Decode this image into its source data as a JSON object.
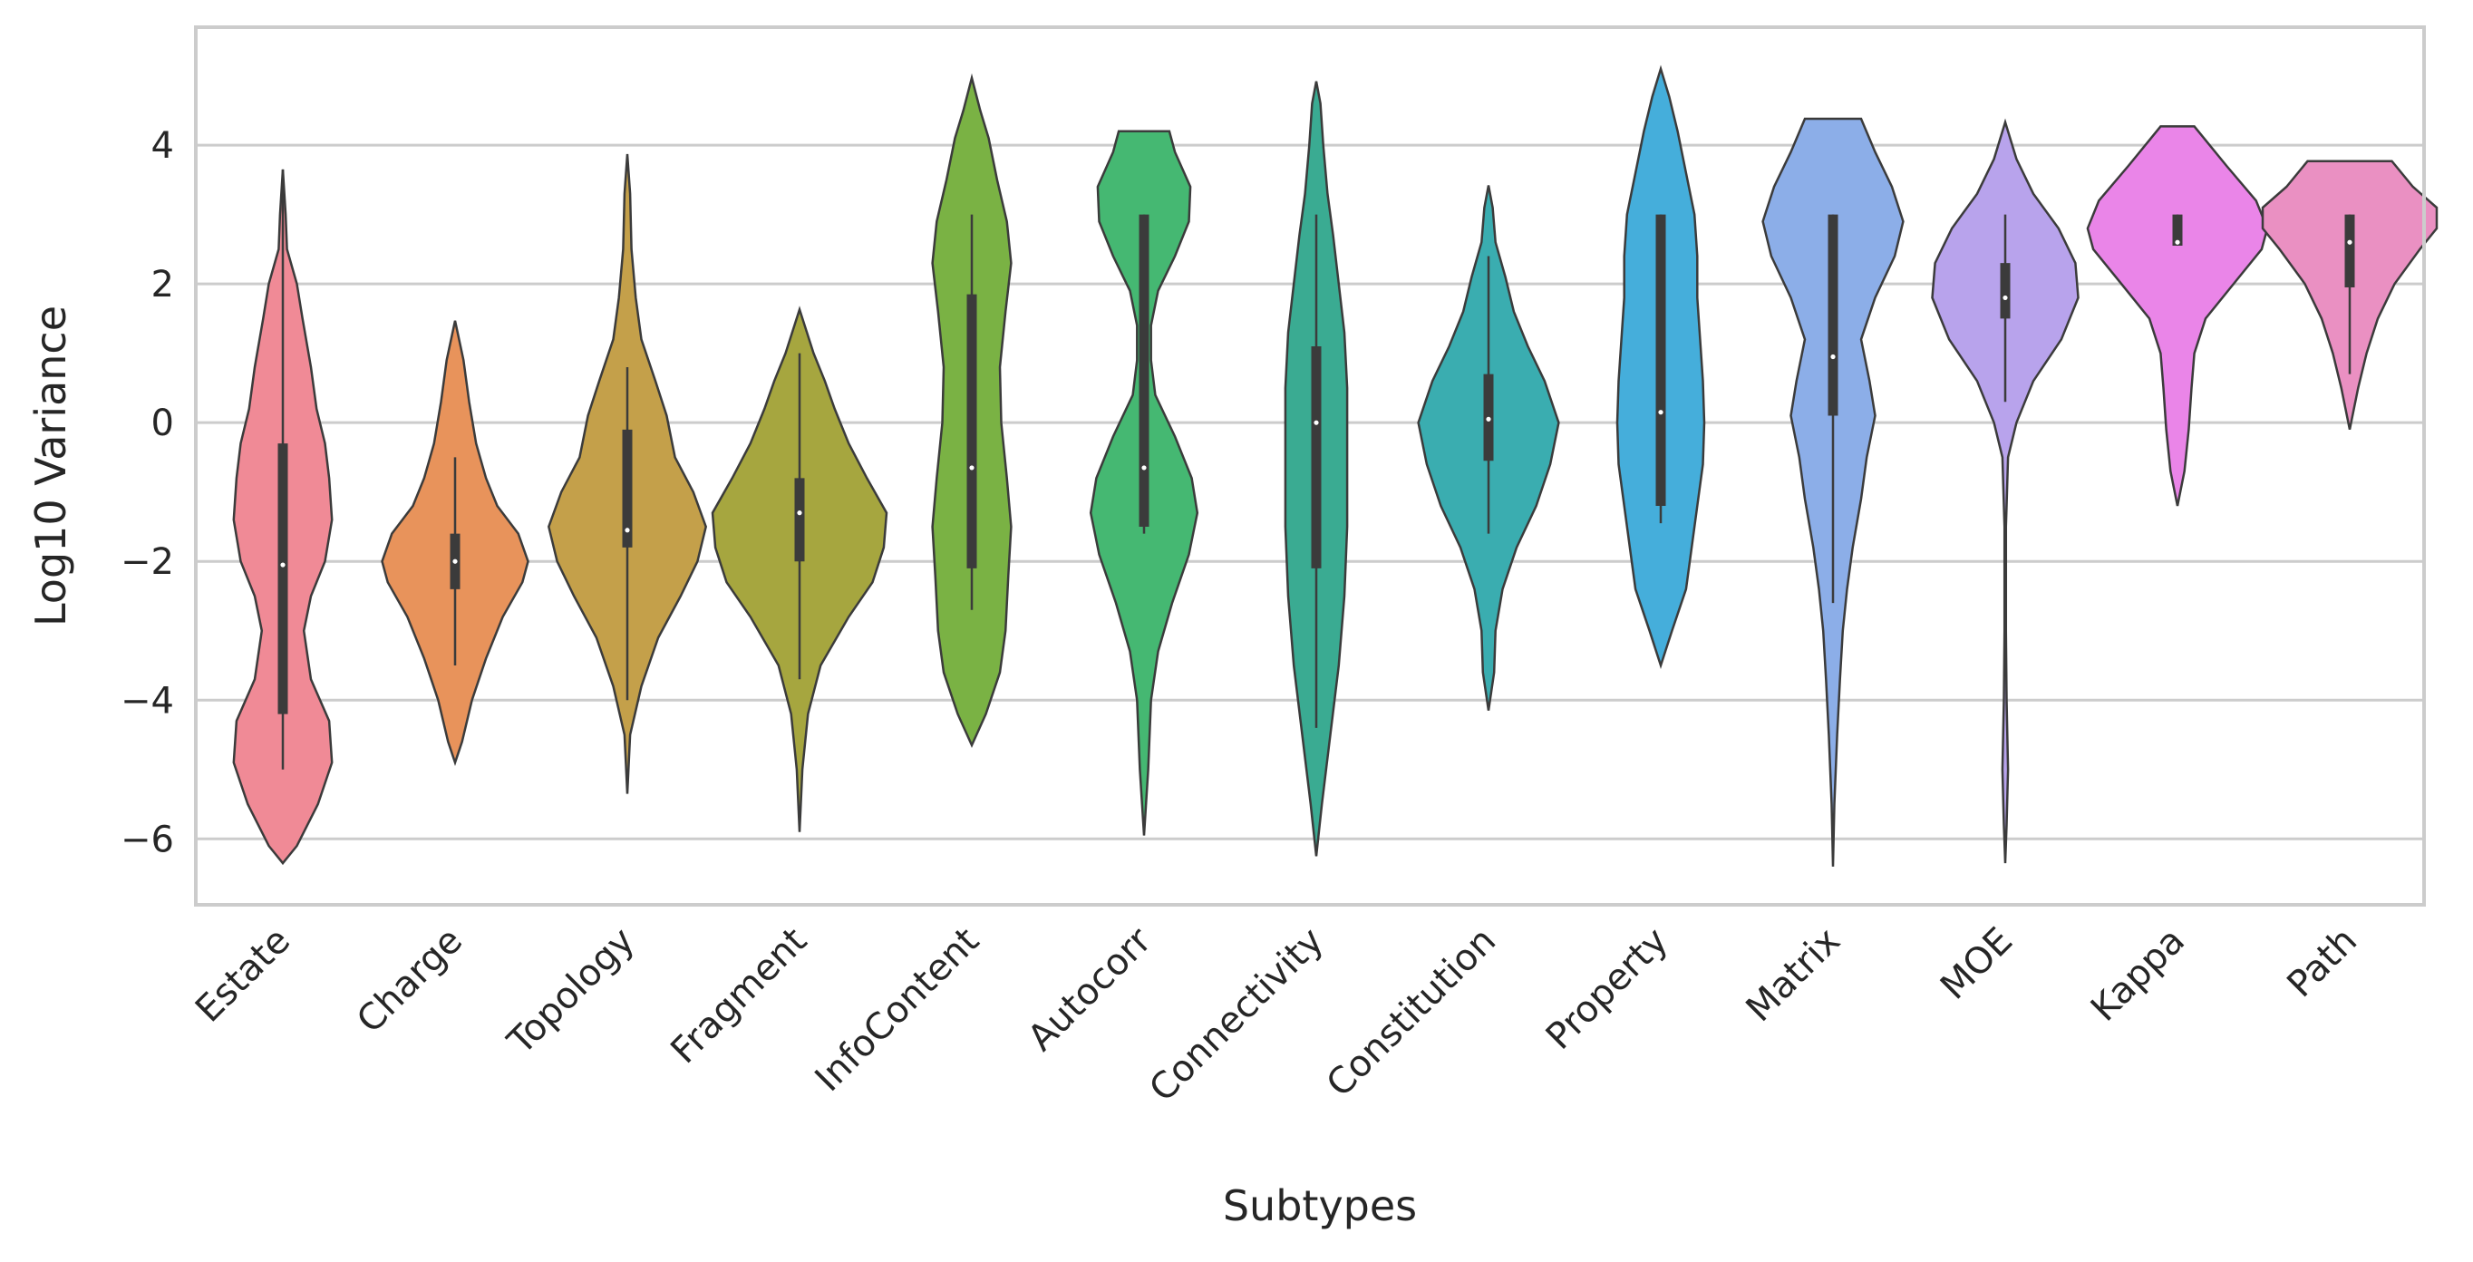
{
  "chart_data": {
    "type": "violin",
    "xlabel": "Subtypes",
    "ylabel": "Log10 Variance",
    "ylim": [
      -6.95,
      5.7
    ],
    "yticks": [
      4,
      2,
      0,
      -2,
      -4,
      -6
    ],
    "ytick_labels": [
      "4",
      "2",
      "0",
      "−2",
      "−4",
      "−6"
    ],
    "grid": "horizontal",
    "categories": [
      "Estate",
      "Charge",
      "Topology",
      "Fragment",
      "InfoContent",
      "Autocorr",
      "Connectivity",
      "Constitution",
      "Property",
      "Matrix",
      "MOE",
      "Kappa",
      "Path"
    ],
    "colors": [
      "#f08a96",
      "#e8935b",
      "#c4a04a",
      "#a6a63f",
      "#7ab244",
      "#45b872",
      "#3aab92",
      "#3aadb0",
      "#45aedb",
      "#8caee8",
      "#b8a3ec",
      "#ea85e8",
      "#ea90c2"
    ],
    "series": [
      {
        "name": "Estate",
        "min": -5.0,
        "q1": -4.2,
        "median": -2.05,
        "q3": -0.3,
        "max": 3.65,
        "profile": [
          [
            -6.35,
            0
          ],
          [
            -6.1,
            0.1
          ],
          [
            -5.5,
            0.25
          ],
          [
            -4.9,
            0.35
          ],
          [
            -4.3,
            0.33
          ],
          [
            -3.7,
            0.2
          ],
          [
            -3.0,
            0.15
          ],
          [
            -2.5,
            0.2
          ],
          [
            -2.0,
            0.3
          ],
          [
            -1.4,
            0.35
          ],
          [
            -0.8,
            0.33
          ],
          [
            -0.3,
            0.3
          ],
          [
            0.2,
            0.24
          ],
          [
            0.8,
            0.2
          ],
          [
            1.5,
            0.14
          ],
          [
            2.0,
            0.1
          ],
          [
            2.5,
            0.03
          ],
          [
            3.0,
            0.02
          ],
          [
            3.65,
            0
          ]
        ]
      },
      {
        "name": "Charge",
        "min": -3.5,
        "q1": -2.4,
        "median": -2.0,
        "q3": -1.6,
        "max": -0.5,
        "profile": [
          [
            -4.9,
            0
          ],
          [
            -4.6,
            0.05
          ],
          [
            -4.0,
            0.12
          ],
          [
            -3.4,
            0.22
          ],
          [
            -2.8,
            0.34
          ],
          [
            -2.3,
            0.48
          ],
          [
            -2.0,
            0.52
          ],
          [
            -1.6,
            0.45
          ],
          [
            -1.2,
            0.3
          ],
          [
            -0.8,
            0.22
          ],
          [
            -0.3,
            0.15
          ],
          [
            0.3,
            0.1
          ],
          [
            0.9,
            0.06
          ],
          [
            1.47,
            0
          ]
        ]
      },
      {
        "name": "Topology",
        "min": -4.0,
        "q1": -1.8,
        "median": -1.55,
        "q3": -0.1,
        "max": 0.8,
        "profile": [
          [
            -5.35,
            0
          ],
          [
            -4.5,
            0.02
          ],
          [
            -3.8,
            0.1
          ],
          [
            -3.1,
            0.22
          ],
          [
            -2.5,
            0.38
          ],
          [
            -2.0,
            0.5
          ],
          [
            -1.5,
            0.56
          ],
          [
            -1.0,
            0.47
          ],
          [
            -0.5,
            0.34
          ],
          [
            0.1,
            0.28
          ],
          [
            0.6,
            0.2
          ],
          [
            1.2,
            0.1
          ],
          [
            1.8,
            0.06
          ],
          [
            2.5,
            0.03
          ],
          [
            3.3,
            0.02
          ],
          [
            3.87,
            0
          ]
        ]
      },
      {
        "name": "Fragment",
        "min": -3.7,
        "q1": -2.0,
        "median": -1.3,
        "q3": -0.8,
        "max": 1.0,
        "profile": [
          [
            -5.9,
            0
          ],
          [
            -5.0,
            0.02
          ],
          [
            -4.2,
            0.06
          ],
          [
            -3.5,
            0.15
          ],
          [
            -2.8,
            0.35
          ],
          [
            -2.3,
            0.52
          ],
          [
            -1.8,
            0.6
          ],
          [
            -1.3,
            0.62
          ],
          [
            -0.8,
            0.48
          ],
          [
            -0.3,
            0.35
          ],
          [
            0.2,
            0.25
          ],
          [
            0.6,
            0.18
          ],
          [
            1.0,
            0.1
          ],
          [
            1.63,
            0
          ]
        ]
      },
      {
        "name": "InfoContent",
        "min": -2.7,
        "q1": -2.1,
        "median": -0.65,
        "q3": 1.85,
        "max": 3.0,
        "profile": [
          [
            -4.65,
            0
          ],
          [
            -4.2,
            0.1
          ],
          [
            -3.6,
            0.2
          ],
          [
            -3.0,
            0.24
          ],
          [
            -2.2,
            0.26
          ],
          [
            -1.5,
            0.28
          ],
          [
            -0.8,
            0.25
          ],
          [
            0,
            0.21
          ],
          [
            0.8,
            0.2
          ],
          [
            1.6,
            0.24
          ],
          [
            2.3,
            0.28
          ],
          [
            2.9,
            0.25
          ],
          [
            3.5,
            0.18
          ],
          [
            4.1,
            0.12
          ],
          [
            4.5,
            0.06
          ],
          [
            4.97,
            0
          ]
        ]
      },
      {
        "name": "Autocorr",
        "min": -1.6,
        "q1": -1.5,
        "median": -0.65,
        "q3": 3.0,
        "max": 3.0,
        "profile": [
          [
            -5.95,
            0
          ],
          [
            -5.0,
            0.03
          ],
          [
            -4.0,
            0.05
          ],
          [
            -3.3,
            0.1
          ],
          [
            -2.6,
            0.2
          ],
          [
            -1.9,
            0.32
          ],
          [
            -1.3,
            0.38
          ],
          [
            -0.8,
            0.34
          ],
          [
            -0.2,
            0.22
          ],
          [
            0.4,
            0.08
          ],
          [
            0.9,
            0.05
          ],
          [
            1.4,
            0.05
          ],
          [
            1.9,
            0.1
          ],
          [
            2.4,
            0.22
          ],
          [
            2.9,
            0.32
          ],
          [
            3.4,
            0.33
          ],
          [
            3.9,
            0.22
          ],
          [
            4.2,
            0.18
          ]
        ]
      },
      {
        "name": "Connectivity",
        "min": -4.4,
        "q1": -2.1,
        "median": 0.0,
        "q3": 1.1,
        "max": 3.0,
        "profile": [
          [
            -6.25,
            0
          ],
          [
            -5.5,
            0.04
          ],
          [
            -4.5,
            0.1
          ],
          [
            -3.5,
            0.16
          ],
          [
            -2.5,
            0.2
          ],
          [
            -1.5,
            0.22
          ],
          [
            -0.5,
            0.22
          ],
          [
            0.5,
            0.22
          ],
          [
            1.3,
            0.2
          ],
          [
            2.0,
            0.16
          ],
          [
            2.7,
            0.12
          ],
          [
            3.3,
            0.08
          ],
          [
            4.0,
            0.05
          ],
          [
            4.6,
            0.03
          ],
          [
            4.92,
            0
          ]
        ]
      },
      {
        "name": "Constitution",
        "min": -1.6,
        "q1": -0.55,
        "median": 0.05,
        "q3": 0.7,
        "max": 2.4,
        "profile": [
          [
            -4.15,
            0
          ],
          [
            -3.6,
            0.04
          ],
          [
            -3.0,
            0.05
          ],
          [
            -2.4,
            0.1
          ],
          [
            -1.8,
            0.2
          ],
          [
            -1.2,
            0.34
          ],
          [
            -0.6,
            0.44
          ],
          [
            0.0,
            0.5
          ],
          [
            0.6,
            0.4
          ],
          [
            1.1,
            0.28
          ],
          [
            1.6,
            0.18
          ],
          [
            2.1,
            0.12
          ],
          [
            2.6,
            0.05
          ],
          [
            3.1,
            0.03
          ],
          [
            3.42,
            0
          ]
        ]
      },
      {
        "name": "Property",
        "min": -1.45,
        "q1": -1.2,
        "median": 0.15,
        "q3": 3.0,
        "max": 3.0,
        "profile": [
          [
            -3.5,
            0
          ],
          [
            -3.0,
            0.08
          ],
          [
            -2.4,
            0.18
          ],
          [
            -1.8,
            0.22
          ],
          [
            -1.2,
            0.26
          ],
          [
            -0.6,
            0.3
          ],
          [
            0,
            0.31
          ],
          [
            0.6,
            0.3
          ],
          [
            1.2,
            0.28
          ],
          [
            1.8,
            0.26
          ],
          [
            2.4,
            0.26
          ],
          [
            3.0,
            0.24
          ],
          [
            3.6,
            0.18
          ],
          [
            4.2,
            0.12
          ],
          [
            4.7,
            0.06
          ],
          [
            5.1,
            0
          ]
        ]
      },
      {
        "name": "Matrix",
        "min": -2.6,
        "q1": 0.1,
        "median": 0.95,
        "q3": 3.0,
        "max": 3.0,
        "profile": [
          [
            -6.4,
            0
          ],
          [
            -5.5,
            0.01
          ],
          [
            -4.5,
            0.03
          ],
          [
            -3.7,
            0.05
          ],
          [
            -3.0,
            0.07
          ],
          [
            -2.4,
            0.1
          ],
          [
            -1.8,
            0.14
          ],
          [
            -1.1,
            0.2
          ],
          [
            -0.5,
            0.24
          ],
          [
            0.1,
            0.3
          ],
          [
            0.6,
            0.26
          ],
          [
            1.2,
            0.2
          ],
          [
            1.8,
            0.3
          ],
          [
            2.4,
            0.44
          ],
          [
            2.9,
            0.5
          ],
          [
            3.4,
            0.42
          ],
          [
            3.9,
            0.3
          ],
          [
            4.38,
            0.2
          ]
        ]
      },
      {
        "name": "MOE",
        "min": 0.3,
        "q1": 1.5,
        "median": 1.8,
        "q3": 2.3,
        "max": 3.0,
        "profile": [
          [
            -6.35,
            0
          ],
          [
            -5.8,
            0.01
          ],
          [
            -5.0,
            0.02
          ],
          [
            -4.0,
            0.01
          ],
          [
            -3.0,
            0.005
          ],
          [
            -1.5,
            0.005
          ],
          [
            -0.5,
            0.02
          ],
          [
            0,
            0.08
          ],
          [
            0.6,
            0.2
          ],
          [
            1.2,
            0.4
          ],
          [
            1.8,
            0.52
          ],
          [
            2.3,
            0.5
          ],
          [
            2.8,
            0.38
          ],
          [
            3.3,
            0.2
          ],
          [
            3.8,
            0.08
          ],
          [
            4.33,
            0
          ]
        ]
      },
      {
        "name": "Kappa",
        "min": 2.55,
        "q1": 2.55,
        "median": 2.6,
        "q3": 3.0,
        "max": 3.0,
        "profile": [
          [
            -1.2,
            0
          ],
          [
            -0.7,
            0.05
          ],
          [
            -0.1,
            0.08
          ],
          [
            0.5,
            0.1
          ],
          [
            1.0,
            0.12
          ],
          [
            1.5,
            0.2
          ],
          [
            2.0,
            0.4
          ],
          [
            2.5,
            0.6
          ],
          [
            2.8,
            0.64
          ],
          [
            3.2,
            0.56
          ],
          [
            3.7,
            0.35
          ],
          [
            4.27,
            0.12
          ]
        ]
      },
      {
        "name": "Path",
        "min": 0.7,
        "q1": 1.95,
        "median": 2.6,
        "q3": 3.0,
        "max": 3.0,
        "profile": [
          [
            -0.1,
            0
          ],
          [
            0.5,
            0.06
          ],
          [
            1.0,
            0.12
          ],
          [
            1.5,
            0.2
          ],
          [
            2.0,
            0.32
          ],
          [
            2.5,
            0.5
          ],
          [
            2.8,
            0.62
          ],
          [
            3.1,
            0.62
          ],
          [
            3.4,
            0.45
          ],
          [
            3.77,
            0.3
          ]
        ]
      }
    ]
  }
}
